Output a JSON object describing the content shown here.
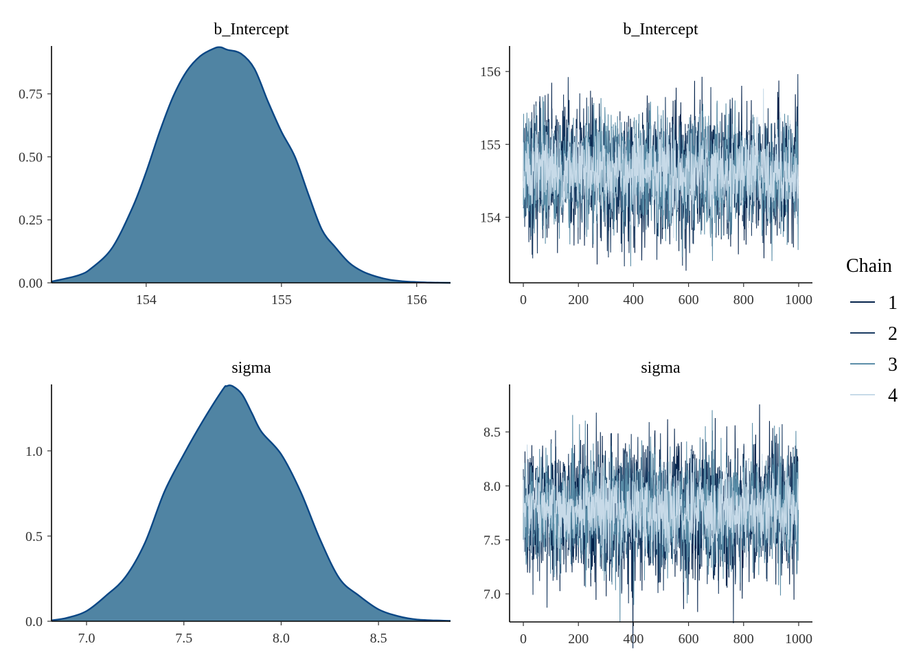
{
  "colors": {
    "density_fill": "#5084a3",
    "density_line": "#0b4785",
    "chains": [
      "#04224b",
      "#193a61",
      "#5b8ea8",
      "#c7dae8"
    ]
  },
  "legend": {
    "title": "Chain",
    "items": [
      "1",
      "2",
      "3",
      "4"
    ]
  },
  "chart_data": [
    {
      "id": "density-b-intercept",
      "type": "area",
      "title": "b_Intercept",
      "xlabel": "",
      "ylabel": "",
      "xlim": [
        153.3,
        156.25
      ],
      "ylim": [
        0,
        0.94
      ],
      "xticks": [
        154,
        155,
        156
      ],
      "xtick_labels": [
        "154",
        "155",
        "156"
      ],
      "yticks": [
        0,
        0.25,
        0.5,
        0.75
      ],
      "ytick_labels": [
        "0.00",
        "0.25",
        "0.50",
        "0.75"
      ],
      "x": [
        153.3,
        153.5,
        153.6,
        153.75,
        153.9,
        154.0,
        154.1,
        154.2,
        154.3,
        154.4,
        154.5,
        154.55,
        154.6,
        154.7,
        154.8,
        154.9,
        155.0,
        155.1,
        155.2,
        155.3,
        155.4,
        155.5,
        155.6,
        155.7,
        155.8,
        155.9,
        156.0,
        156.1,
        156.25
      ],
      "y": [
        0.005,
        0.03,
        0.06,
        0.14,
        0.3,
        0.44,
        0.6,
        0.74,
        0.84,
        0.9,
        0.93,
        0.935,
        0.925,
        0.91,
        0.85,
        0.72,
        0.6,
        0.5,
        0.35,
        0.21,
        0.14,
        0.08,
        0.045,
        0.025,
        0.012,
        0.006,
        0.003,
        0.001,
        0.0
      ]
    },
    {
      "id": "trace-b-intercept",
      "type": "line",
      "title": "b_Intercept",
      "xlabel": "",
      "ylabel": "",
      "xlim": [
        -50,
        1050
      ],
      "ylim": [
        153.1,
        156.35
      ],
      "xticks": [
        0,
        200,
        400,
        600,
        800,
        1000
      ],
      "xtick_labels": [
        "0",
        "200",
        "400",
        "600",
        "800",
        "1000"
      ],
      "yticks": [
        154,
        155,
        156
      ],
      "ytick_labels": [
        "154",
        "155",
        "156"
      ],
      "series": [
        {
          "name": "1",
          "mean": 154.62,
          "sd": 0.45,
          "n": 1000,
          "seed": 11
        },
        {
          "name": "2",
          "mean": 154.6,
          "sd": 0.43,
          "n": 1000,
          "seed": 23
        },
        {
          "name": "3",
          "mean": 154.63,
          "sd": 0.42,
          "n": 1000,
          "seed": 37
        },
        {
          "name": "4",
          "mean": 154.62,
          "sd": 0.3,
          "n": 1000,
          "seed": 51
        }
      ]
    },
    {
      "id": "density-sigma",
      "type": "area",
      "title": "sigma",
      "xlabel": "",
      "ylabel": "",
      "xlim": [
        6.82,
        8.87
      ],
      "ylim": [
        0,
        1.39
      ],
      "xticks": [
        7.0,
        7.5,
        8.0,
        8.5
      ],
      "xtick_labels": [
        "7.0",
        "7.5",
        "8.0",
        "8.5"
      ],
      "yticks": [
        0,
        0.5,
        1.0
      ],
      "ytick_labels": [
        "0.0",
        "0.5",
        "1.0"
      ],
      "x": [
        6.82,
        6.9,
        7.0,
        7.1,
        7.2,
        7.3,
        7.4,
        7.5,
        7.6,
        7.7,
        7.72,
        7.75,
        7.8,
        7.85,
        7.9,
        8.0,
        8.1,
        8.2,
        8.3,
        8.4,
        8.5,
        8.6,
        8.7,
        8.87
      ],
      "y": [
        0.005,
        0.02,
        0.06,
        0.15,
        0.26,
        0.46,
        0.76,
        0.98,
        1.18,
        1.36,
        1.38,
        1.38,
        1.33,
        1.22,
        1.11,
        0.98,
        0.76,
        0.48,
        0.25,
        0.15,
        0.07,
        0.03,
        0.01,
        0.002
      ]
    },
    {
      "id": "trace-sigma",
      "type": "line",
      "title": "sigma",
      "xlabel": "",
      "ylabel": "",
      "xlim": [
        -50,
        1050
      ],
      "ylim": [
        6.74,
        8.94
      ],
      "xticks": [
        0,
        200,
        400,
        600,
        800,
        1000
      ],
      "xtick_labels": [
        "0",
        "200",
        "400",
        "600",
        "800",
        "1000"
      ],
      "yticks": [
        7.0,
        7.5,
        8.0,
        8.5
      ],
      "ytick_labels": [
        "7.0",
        "7.5",
        "8.0",
        "8.5"
      ],
      "series": [
        {
          "name": "1",
          "mean": 7.78,
          "sd": 0.32,
          "n": 1000,
          "seed": 61
        },
        {
          "name": "2",
          "mean": 7.76,
          "sd": 0.3,
          "n": 1000,
          "seed": 73
        },
        {
          "name": "3",
          "mean": 7.78,
          "sd": 0.29,
          "n": 1000,
          "seed": 89
        },
        {
          "name": "4",
          "mean": 7.77,
          "sd": 0.2,
          "n": 1000,
          "seed": 97
        }
      ]
    }
  ]
}
